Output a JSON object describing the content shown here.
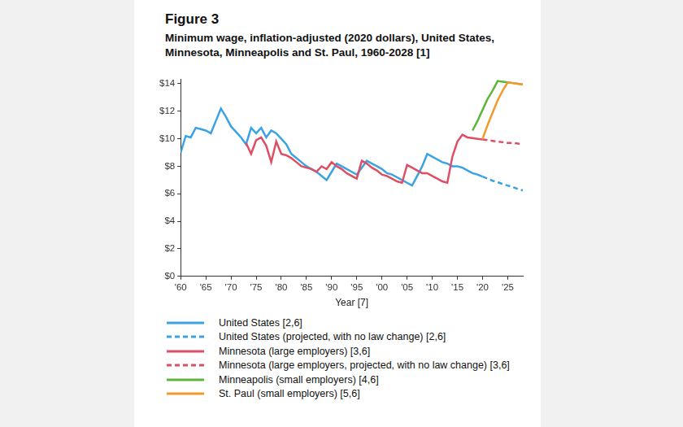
{
  "chart_data": {
    "type": "line",
    "title": "Figure 3",
    "subtitle": "Minimum wage, inflation-adjusted (2020 dollars), United States, Minnesota, Minneapolis and St. Paul, 1960-2028 [1]",
    "x_label": "Year [7]",
    "x": [
      1960,
      1961,
      1962,
      1963,
      1964,
      1965,
      1966,
      1967,
      1968,
      1969,
      1970,
      1971,
      1972,
      1973,
      1974,
      1975,
      1976,
      1977,
      1978,
      1979,
      1980,
      1981,
      1982,
      1983,
      1984,
      1985,
      1986,
      1987,
      1988,
      1989,
      1990,
      1991,
      1992,
      1993,
      1994,
      1995,
      1996,
      1997,
      1998,
      1999,
      2000,
      2001,
      2002,
      2003,
      2004,
      2005,
      2006,
      2007,
      2008,
      2009,
      2010,
      2011,
      2012,
      2013,
      2014,
      2015,
      2016,
      2017,
      2018,
      2019,
      2020,
      2021,
      2022,
      2023,
      2024,
      2025,
      2026,
      2027,
      2028
    ],
    "series": [
      {
        "name": "United States [2,6]",
        "color": "#3aa3e3",
        "line_style": "solid",
        "values": [
          9.0,
          10.2,
          10.1,
          10.8,
          10.7,
          10.6,
          10.4,
          11.3,
          12.2,
          11.6,
          10.9,
          10.5,
          10.1,
          9.6,
          10.8,
          10.4,
          10.8,
          10.1,
          10.6,
          10.4,
          10.0,
          9.6,
          8.9,
          8.6,
          8.3,
          8.0,
          7.8,
          7.6,
          7.3,
          7.0,
          7.6,
          8.2,
          8.0,
          7.8,
          7.6,
          7.4,
          7.9,
          8.4,
          8.2,
          8.0,
          7.8,
          7.5,
          7.4,
          7.2,
          7.0,
          6.8,
          6.6,
          7.3,
          8.0,
          8.9,
          8.7,
          8.5,
          8.3,
          8.2,
          8.0,
          8.0,
          7.9,
          7.7,
          7.5,
          7.4,
          7.25,
          null,
          null,
          null,
          null,
          null,
          null,
          null,
          null
        ]
      },
      {
        "name": "United States (projected, with no law change) [2,6]",
        "color": "#3aa3e3",
        "line_style": "dashed",
        "values": [
          null,
          null,
          null,
          null,
          null,
          null,
          null,
          null,
          null,
          null,
          null,
          null,
          null,
          null,
          null,
          null,
          null,
          null,
          null,
          null,
          null,
          null,
          null,
          null,
          null,
          null,
          null,
          null,
          null,
          null,
          null,
          null,
          null,
          null,
          null,
          null,
          null,
          null,
          null,
          null,
          null,
          null,
          null,
          null,
          null,
          null,
          null,
          null,
          null,
          null,
          null,
          null,
          null,
          null,
          null,
          null,
          null,
          null,
          null,
          null,
          7.25,
          7.1,
          6.95,
          6.85,
          6.7,
          6.6,
          6.5,
          6.35,
          6.25
        ]
      },
      {
        "name": "Minnesota (large employers) [3,6]",
        "color": "#dc4f64",
        "line_style": "solid",
        "values": [
          null,
          null,
          null,
          null,
          null,
          null,
          null,
          null,
          null,
          null,
          null,
          null,
          null,
          9.7,
          8.9,
          9.9,
          10.1,
          9.5,
          8.3,
          9.8,
          8.9,
          8.8,
          8.6,
          8.3,
          8.0,
          7.9,
          7.8,
          7.6,
          8.0,
          7.8,
          8.3,
          8.0,
          7.8,
          7.5,
          7.3,
          7.1,
          8.4,
          8.2,
          7.9,
          7.7,
          7.4,
          7.3,
          7.1,
          6.9,
          6.8,
          8.1,
          7.9,
          7.7,
          7.5,
          7.5,
          7.3,
          7.1,
          6.9,
          6.8,
          8.7,
          9.8,
          10.3,
          10.1,
          10.05,
          10.0,
          9.95,
          null,
          null,
          null,
          null,
          null,
          null,
          null,
          null
        ]
      },
      {
        "name": "Minnesota (large employers, projected, with no law change) [3,6]",
        "color": "#dc4f64",
        "line_style": "dashed",
        "values": [
          null,
          null,
          null,
          null,
          null,
          null,
          null,
          null,
          null,
          null,
          null,
          null,
          null,
          null,
          null,
          null,
          null,
          null,
          null,
          null,
          null,
          null,
          null,
          null,
          null,
          null,
          null,
          null,
          null,
          null,
          null,
          null,
          null,
          null,
          null,
          null,
          null,
          null,
          null,
          null,
          null,
          null,
          null,
          null,
          null,
          null,
          null,
          null,
          null,
          null,
          null,
          null,
          null,
          null,
          null,
          null,
          null,
          null,
          null,
          null,
          9.95,
          9.9,
          9.85,
          9.8,
          9.75,
          9.7,
          9.7,
          9.65,
          9.6
        ]
      },
      {
        "name": "Minneapolis (small employers) [4,6]",
        "color": "#5db53a",
        "line_style": "solid",
        "values": [
          null,
          null,
          null,
          null,
          null,
          null,
          null,
          null,
          null,
          null,
          null,
          null,
          null,
          null,
          null,
          null,
          null,
          null,
          null,
          null,
          null,
          null,
          null,
          null,
          null,
          null,
          null,
          null,
          null,
          null,
          null,
          null,
          null,
          null,
          null,
          null,
          null,
          null,
          null,
          null,
          null,
          null,
          null,
          null,
          null,
          null,
          null,
          null,
          null,
          null,
          null,
          null,
          null,
          null,
          null,
          null,
          null,
          null,
          10.6,
          11.3,
          12.1,
          12.9,
          13.5,
          14.2,
          14.15,
          14.1,
          14.05,
          14.0,
          13.95
        ]
      },
      {
        "name": "St. Paul (small employers) [5,6]",
        "color": "#f39a2b",
        "line_style": "solid",
        "values": [
          null,
          null,
          null,
          null,
          null,
          null,
          null,
          null,
          null,
          null,
          null,
          null,
          null,
          null,
          null,
          null,
          null,
          null,
          null,
          null,
          null,
          null,
          null,
          null,
          null,
          null,
          null,
          null,
          null,
          null,
          null,
          null,
          null,
          null,
          null,
          null,
          null,
          null,
          null,
          null,
          null,
          null,
          null,
          null,
          null,
          null,
          null,
          null,
          null,
          null,
          null,
          null,
          null,
          null,
          null,
          null,
          null,
          null,
          null,
          null,
          10.0,
          11.0,
          11.9,
          12.8,
          13.5,
          14.1,
          14.05,
          14.0,
          13.95
        ]
      }
    ],
    "xlim": [
      1960,
      2028
    ],
    "xticks": [
      {
        "value": 1960,
        "label": "'60"
      },
      {
        "value": 1965,
        "label": "'65"
      },
      {
        "value": 1970,
        "label": "'70"
      },
      {
        "value": 1975,
        "label": "'75"
      },
      {
        "value": 1980,
        "label": "'80"
      },
      {
        "value": 1985,
        "label": "'85"
      },
      {
        "value": 1990,
        "label": "'90"
      },
      {
        "value": 1995,
        "label": "'95"
      },
      {
        "value": 2000,
        "label": "'00"
      },
      {
        "value": 2005,
        "label": "'05"
      },
      {
        "value": 2010,
        "label": "'10"
      },
      {
        "value": 2015,
        "label": "'15"
      },
      {
        "value": 2020,
        "label": "'20"
      },
      {
        "value": 2025,
        "label": "'25"
      }
    ],
    "ylim": [
      0,
      14.3
    ],
    "yticks": [
      {
        "value": 0,
        "label": "$0"
      },
      {
        "value": 2,
        "label": "$2"
      },
      {
        "value": 4,
        "label": "$4"
      },
      {
        "value": 6,
        "label": "$6"
      },
      {
        "value": 8,
        "label": "$8"
      },
      {
        "value": 10,
        "label": "$10"
      },
      {
        "value": 12,
        "label": "$12"
      },
      {
        "value": 14,
        "label": "$14"
      }
    ],
    "grid": false,
    "legend": "bottom"
  }
}
